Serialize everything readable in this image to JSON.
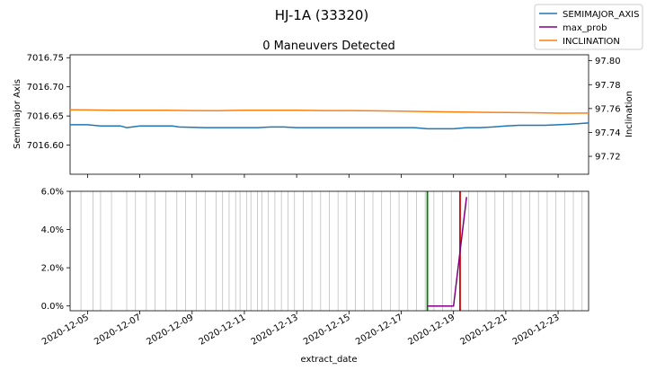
{
  "figure": {
    "suptitle": "HJ-1A (33320)",
    "legend": {
      "placement": "top-right",
      "items": [
        {
          "label": "SEMIMAJOR_AXIS",
          "color": "#1f77b4"
        },
        {
          "label": "max_prob",
          "color": "#800080"
        },
        {
          "label": "INCLINATION",
          "color": "#ff7f0e"
        }
      ]
    }
  },
  "chart_data": [
    {
      "type": "line",
      "title": "0 Maneuvers Detected",
      "xlabel": "",
      "ylabel": "Semimajor Axis",
      "ylabel_right": "Inclination",
      "xlim": [
        "2020-12-04 08:00",
        "2020-12-24 04:00"
      ],
      "ylim": [
        7016.55,
        7016.755
      ],
      "ylim_right": [
        97.705,
        97.805
      ],
      "yticks": [
        7016.6,
        7016.65,
        7016.7,
        7016.75
      ],
      "ytick_labels": [
        "7016.60",
        "7016.65",
        "7016.70",
        "7016.75"
      ],
      "yticks_right": [
        97.72,
        97.74,
        97.76,
        97.78,
        97.8
      ],
      "ytick_labels_right": [
        "97.72",
        "97.74",
        "97.76",
        "97.78",
        "97.80"
      ],
      "grid": false,
      "series": [
        {
          "name": "SEMIMAJOR_AXIS",
          "color": "#1f77b4",
          "axis": "left",
          "x": [
            "2020-12-04 08:00",
            "2020-12-05 00:00",
            "2020-12-05 12:00",
            "2020-12-06 06:00",
            "2020-12-06 12:00",
            "2020-12-07 00:00",
            "2020-12-08 06:00",
            "2020-12-08 12:00",
            "2020-12-09 12:00",
            "2020-12-10 12:00",
            "2020-12-11 12:00",
            "2020-12-12 00:00",
            "2020-12-12 12:00",
            "2020-12-13 00:00",
            "2020-12-14 00:00",
            "2020-12-15 00:00",
            "2020-12-16 00:00",
            "2020-12-17 00:00",
            "2020-12-17 12:00",
            "2020-12-18 00:00",
            "2020-12-18 12:00",
            "2020-12-19 00:00",
            "2020-12-19 12:00",
            "2020-12-20 00:00",
            "2020-12-20 12:00",
            "2020-12-21 00:00",
            "2020-12-21 12:00",
            "2020-12-22 00:00",
            "2020-12-22 12:00",
            "2020-12-23 00:00",
            "2020-12-23 12:00",
            "2020-12-24 04:00"
          ],
          "values": [
            7016.635,
            7016.635,
            7016.633,
            7016.633,
            7016.63,
            7016.633,
            7016.633,
            7016.631,
            7016.63,
            7016.63,
            7016.63,
            7016.631,
            7016.631,
            7016.63,
            7016.63,
            7016.63,
            7016.63,
            7016.63,
            7016.63,
            7016.628,
            7016.628,
            7016.628,
            7016.63,
            7016.63,
            7016.631,
            7016.633,
            7016.634,
            7016.634,
            7016.634,
            7016.635,
            7016.636,
            7016.638
          ]
        },
        {
          "name": "INCLINATION",
          "color": "#ff7f0e",
          "axis": "right",
          "x": [
            "2020-12-04 08:00",
            "2020-12-05 00:00",
            "2020-12-06 00:00",
            "2020-12-07 00:00",
            "2020-12-08 00:00",
            "2020-12-09 00:00",
            "2020-12-10 00:00",
            "2020-12-11 00:00",
            "2020-12-12 00:00",
            "2020-12-13 00:00",
            "2020-12-14 00:00",
            "2020-12-15 00:00",
            "2020-12-16 00:00",
            "2020-12-17 00:00",
            "2020-12-18 00:00",
            "2020-12-19 00:00",
            "2020-12-20 00:00",
            "2020-12-21 00:00",
            "2020-12-22 00:00",
            "2020-12-23 00:00",
            "2020-12-24 04:00"
          ],
          "values": [
            97.759,
            97.7588,
            97.7585,
            97.7585,
            97.7585,
            97.7583,
            97.7582,
            97.7585,
            97.7585,
            97.7585,
            97.7583,
            97.7583,
            97.7581,
            97.7578,
            97.7575,
            97.7572,
            97.7569,
            97.7567,
            97.7565,
            97.7561,
            97.7562
          ]
        }
      ]
    },
    {
      "type": "line",
      "title": "",
      "xlabel": "extract_date",
      "ylabel": "",
      "xlim": [
        "2020-12-04 08:00",
        "2020-12-24 04:00"
      ],
      "ylim": [
        -0.0025,
        0.06
      ],
      "yticks": [
        0.0,
        0.02,
        0.04,
        0.06
      ],
      "ytick_labels": [
        "0.0%",
        "2.0%",
        "4.0%",
        "6.0%"
      ],
      "xticks": [
        "2020-12-05",
        "2020-12-07",
        "2020-12-09",
        "2020-12-11",
        "2020-12-13",
        "2020-12-15",
        "2020-12-17",
        "2020-12-19",
        "2020-12-21",
        "2020-12-23"
      ],
      "xtick_labels": [
        "2020-12-05",
        "2020-12-07",
        "2020-12-09",
        "2020-12-11",
        "2020-12-13",
        "2020-12-15",
        "2020-12-17",
        "2020-12-19",
        "2020-12-21",
        "2020-12-23"
      ],
      "grid": false,
      "series": [
        {
          "name": "max_prob",
          "color": "#800080",
          "x": [
            "2020-12-18 00:00",
            "2020-12-18 06:00",
            "2020-12-18 12:00",
            "2020-12-19 00:00",
            "2020-12-19 12:00"
          ],
          "values": [
            0.0,
            0.0,
            0.0,
            0.0,
            0.057
          ]
        }
      ],
      "observation_lines": {
        "color": "#c0c0c0",
        "x": [
          "2020-12-04 18:00",
          "2020-12-05 05:00",
          "2020-12-05 12:00",
          "2020-12-05 22:00",
          "2020-12-06 12:00",
          "2020-12-06 20:00",
          "2020-12-07 06:00",
          "2020-12-07 14:00",
          "2020-12-08 00:00",
          "2020-12-08 10:00",
          "2020-12-08 18:00",
          "2020-12-09 04:00",
          "2020-12-09 12:00",
          "2020-12-09 22:00",
          "2020-12-10 04:00",
          "2020-12-10 10:00",
          "2020-12-10 16:00",
          "2020-12-10 20:00",
          "2020-12-11 02:00",
          "2020-12-11 06:00",
          "2020-12-11 12:00",
          "2020-12-11 16:00",
          "2020-12-11 22:00",
          "2020-12-12 04:00",
          "2020-12-12 10:00",
          "2020-12-12 16:00",
          "2020-12-12 22:00",
          "2020-12-13 06:00",
          "2020-12-13 14:00",
          "2020-12-13 22:00",
          "2020-12-14 06:00",
          "2020-12-14 14:00",
          "2020-12-14 22:00",
          "2020-12-15 06:00",
          "2020-12-15 14:00",
          "2020-12-15 22:00",
          "2020-12-16 06:00",
          "2020-12-16 14:00",
          "2020-12-16 22:00",
          "2020-12-17 06:00",
          "2020-12-17 14:00",
          "2020-12-17 22:00",
          "2020-12-18 06:00",
          "2020-12-18 14:00",
          "2020-12-18 22:00",
          "2020-12-19 06:00",
          "2020-12-19 14:00",
          "2020-12-19 22:00",
          "2020-12-20 06:00",
          "2020-12-20 14:00",
          "2020-12-20 22:00",
          "2020-12-21 06:00",
          "2020-12-21 14:00",
          "2020-12-21 22:00",
          "2020-12-22 06:00",
          "2020-12-22 14:00",
          "2020-12-22 22:00",
          "2020-12-23 06:00",
          "2020-12-23 14:00",
          "2020-12-23 22:00"
        ]
      },
      "vertical_markers": [
        {
          "x": "2020-12-18 00:00",
          "color": "#008000"
        },
        {
          "x": "2020-12-19 06:00",
          "color": "#d00000"
        }
      ]
    }
  ]
}
